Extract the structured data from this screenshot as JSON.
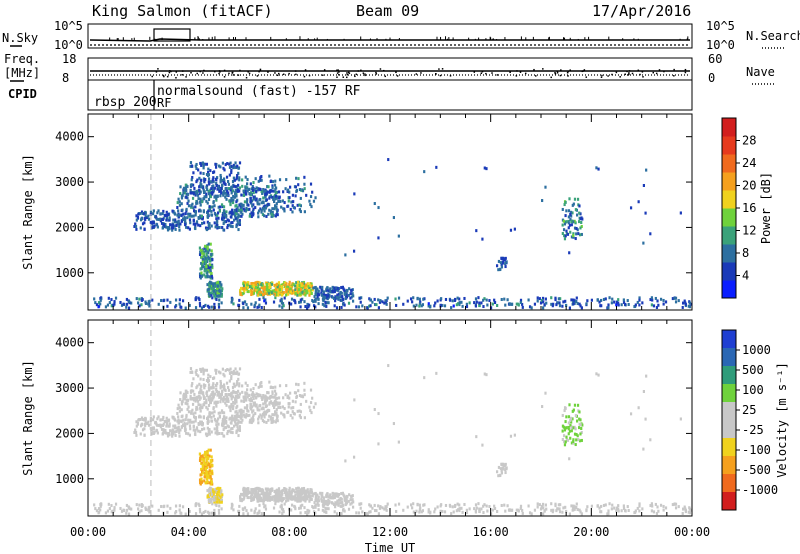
{
  "header": {
    "station": "King Salmon (fitACF)",
    "beam": "Beam 09",
    "date": "17/Apr/2016"
  },
  "noise_panel": {
    "left_label": "N.Sky",
    "right_label": "N.Search",
    "left_ticks": [
      "10^5",
      "10^0"
    ],
    "right_ticks": [
      "10^5",
      "10^0"
    ]
  },
  "freq_panel": {
    "left_label_1": "Freq.",
    "left_label_2": "[MHz]",
    "right_label": "Nave",
    "left_ticks": [
      "18",
      "8"
    ],
    "right_ticks": [
      "60",
      "0"
    ]
  },
  "cpid": {
    "label": "CPID",
    "mode_1": "rbsp 200",
    "mode_1_suffix": "RF",
    "mode_2": "normalsound (fast) -157 RF"
  },
  "axes": {
    "ylabel": "Slant Range [km]",
    "xlabel": "Time UT",
    "x_ticks": [
      "00:00",
      "04:00",
      "08:00",
      "12:00",
      "16:00",
      "20:00",
      "00:00"
    ],
    "y_ticks": [
      "1000",
      "2000",
      "3000",
      "4000"
    ]
  },
  "power_colorbar": {
    "label": "Power [dB]",
    "ticks": [
      "4",
      "8",
      "12",
      "16",
      "20",
      "24",
      "28"
    ],
    "colors": [
      "#0a1eff",
      "#1a3ab8",
      "#2c6fa0",
      "#3aa27a",
      "#6fd23c",
      "#f0d21e",
      "#f5a01e",
      "#f06a1e",
      "#e63a1e",
      "#d21e1e"
    ]
  },
  "velocity_colorbar": {
    "label": "Velocity [m s⁻¹]",
    "ticks": [
      "1000",
      "500",
      "100",
      "25",
      "-25",
      "-100",
      "-500",
      "-1000"
    ],
    "colors": [
      "#1f3fd2",
      "#2a67b4",
      "#2f9c7a",
      "#6fd23c",
      "#c8c8c8",
      "#c8c8c8",
      "#f0d21e",
      "#f5a01e",
      "#f06a1e",
      "#d21e1e"
    ]
  },
  "chart_data": {
    "type": "heatmap",
    "x_range_hours": [
      0,
      24
    ],
    "y_range_km": [
      180,
      4500
    ],
    "power_range_db": [
      0,
      32
    ],
    "velocity_range": [
      -1250,
      1250
    ],
    "mode_change_hour": 2.5,
    "clusters": [
      {
        "t0": 0.1,
        "t1": 24,
        "r0": 190,
        "r1": 420,
        "n": 420,
        "p": [
          3,
          10
        ],
        "v": [
          -180,
          80
        ]
      },
      {
        "t0": 1.8,
        "t1": 6.0,
        "r0": 1900,
        "r1": 2350,
        "n": 260,
        "p": [
          4,
          9
        ],
        "v": [
          -60,
          60
        ]
      },
      {
        "t0": 3.5,
        "t1": 7.5,
        "r0": 2200,
        "r1": 2900,
        "n": 330,
        "p": [
          5,
          11
        ],
        "v": [
          -80,
          100
        ]
      },
      {
        "t0": 4.0,
        "t1": 6.0,
        "r0": 2700,
        "r1": 3400,
        "n": 160,
        "p": [
          4,
          9
        ],
        "v": [
          -150,
          150
        ]
      },
      {
        "t0": 6.0,
        "t1": 9.0,
        "r0": 2300,
        "r1": 3100,
        "n": 150,
        "p": [
          4,
          10
        ],
        "v": [
          -100,
          100
        ]
      },
      {
        "t0": 4.4,
        "t1": 4.9,
        "r0": 850,
        "r1": 1600,
        "n": 120,
        "p": [
          5,
          16
        ],
        "v": [
          -600,
          -300
        ]
      },
      {
        "t0": 4.7,
        "t1": 5.3,
        "r0": 440,
        "r1": 780,
        "n": 110,
        "p": [
          6,
          14
        ],
        "v": [
          -350,
          -150
        ]
      },
      {
        "t0": 6.0,
        "t1": 8.9,
        "r0": 470,
        "r1": 760,
        "n": 380,
        "p": [
          11,
          22
        ],
        "v": [
          -250,
          -120
        ]
      },
      {
        "t0": 8.9,
        "t1": 10.5,
        "r0": 380,
        "r1": 650,
        "n": 120,
        "p": [
          4,
          9
        ],
        "v": [
          -200,
          -60
        ]
      },
      {
        "t0": 16.2,
        "t1": 16.6,
        "r0": 1000,
        "r1": 1300,
        "n": 22,
        "p": [
          4,
          9
        ],
        "v": [
          60,
          150
        ]
      },
      {
        "t0": 18.8,
        "t1": 19.6,
        "r0": 1700,
        "r1": 2600,
        "n": 70,
        "p": [
          4,
          14
        ],
        "v": [
          150,
          500
        ]
      },
      {
        "t0": 10.0,
        "t1": 24,
        "r0": 1300,
        "r1": 3500,
        "n": 30,
        "p": [
          3,
          8
        ],
        "v": [
          -100,
          100
        ]
      }
    ]
  }
}
